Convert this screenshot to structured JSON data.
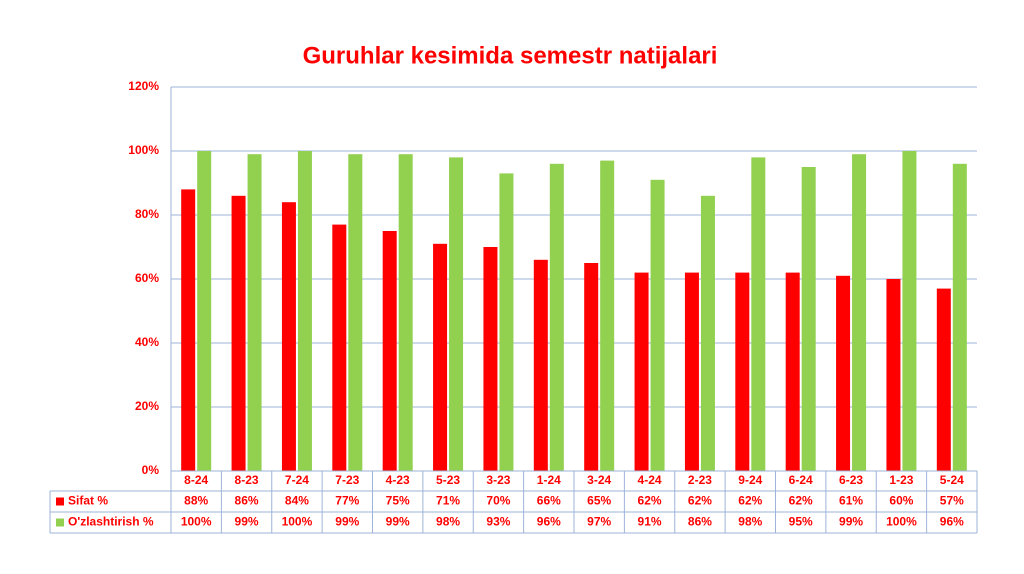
{
  "chart_data": {
    "type": "bar",
    "title": "Guruhlar kesimida semestr natijalari",
    "categories": [
      "8-24",
      "8-23",
      "7-24",
      "7-23",
      "4-23",
      "5-23",
      "3-23",
      "1-24",
      "3-24",
      "4-24",
      "2-23",
      "9-24",
      "6-24",
      "6-23",
      "1-23",
      "5-24"
    ],
    "series": [
      {
        "name": "Sifat %",
        "color": "#ff0000",
        "values": [
          88,
          86,
          84,
          77,
          75,
          71,
          70,
          66,
          65,
          62,
          62,
          62,
          62,
          61,
          60,
          57
        ],
        "value_labels": [
          "88%",
          "86%",
          "84%",
          "77%",
          "75%",
          "71%",
          "70%",
          "66%",
          "65%",
          "62%",
          "62%",
          "62%",
          "62%",
          "61%",
          "60%",
          "57%"
        ]
      },
      {
        "name": "O'zlashtirish %",
        "color": "#92d050",
        "values": [
          100,
          99,
          100,
          99,
          99,
          98,
          93,
          96,
          97,
          91,
          86,
          98,
          95,
          99,
          100,
          96
        ],
        "value_labels": [
          "100%",
          "99%",
          "100%",
          "99%",
          "99%",
          "98%",
          "93%",
          "96%",
          "97%",
          "91%",
          "86%",
          "98%",
          "95%",
          "99%",
          "100%",
          "96%"
        ]
      }
    ],
    "ylim": [
      0,
      120
    ],
    "yticks": [
      {
        "value": 0,
        "label": "0%"
      },
      {
        "value": 20,
        "label": "20%"
      },
      {
        "value": 40,
        "label": "40%"
      },
      {
        "value": 60,
        "label": "60%"
      },
      {
        "value": 80,
        "label": "80%"
      },
      {
        "value": 100,
        "label": "100%"
      },
      {
        "value": 120,
        "label": "120%"
      }
    ],
    "grid": true
  }
}
